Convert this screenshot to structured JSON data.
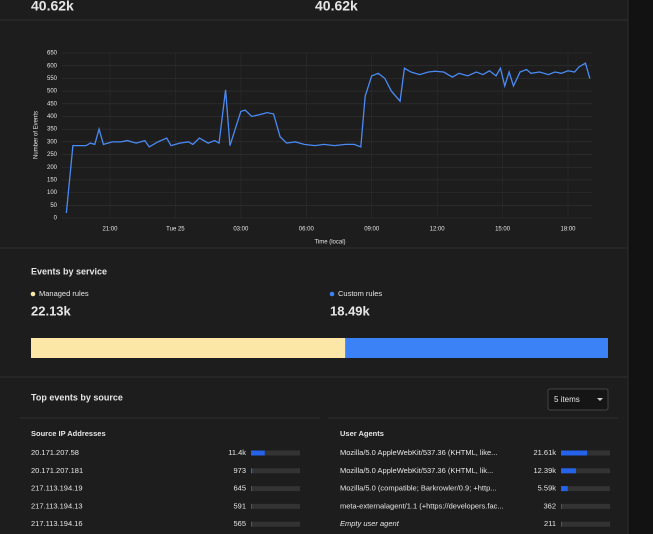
{
  "stats": [
    {
      "value": 40620,
      "label": "40.62k"
    },
    {
      "value": 40620,
      "label": "40.62k"
    }
  ],
  "chart_data": {
    "type": "line",
    "xlabel": "Time (local)",
    "ylabel": "Number of Events",
    "x": [
      19.0,
      19.3,
      19.9,
      20.1,
      20.3,
      20.5,
      20.7,
      21.1,
      21.5,
      21.8,
      22.2,
      22.6,
      22.8,
      23.2,
      23.6,
      23.8,
      24.2,
      24.6,
      24.8,
      25.1,
      25.5,
      25.8,
      26.0,
      26.3,
      26.5,
      27.0,
      27.2,
      27.5,
      28.0,
      28.2,
      28.5,
      28.8,
      29.1,
      29.5,
      29.9,
      30.4,
      30.8,
      31.3,
      31.8,
      32.2,
      32.5,
      32.7,
      33.0,
      33.3,
      33.6,
      33.9,
      34.3,
      34.5,
      34.8,
      35.2,
      35.6,
      35.9,
      36.3,
      36.7,
      37.0,
      37.4,
      37.8,
      38.1,
      38.4,
      38.7,
      38.9,
      39.1,
      39.3,
      39.5,
      39.8,
      40.1,
      40.3,
      40.7,
      41.1,
      41.4,
      41.7,
      42.0,
      42.3,
      42.5,
      42.8,
      43.0
    ],
    "series": [
      {
        "name": "Events",
        "color": "#4a8af4",
        "values": [
          20,
          285,
          285,
          295,
          290,
          350,
          290,
          300,
          300,
          305,
          295,
          305,
          280,
          300,
          315,
          285,
          295,
          300,
          290,
          315,
          295,
          305,
          295,
          505,
          285,
          420,
          425,
          400,
          410,
          415,
          410,
          320,
          295,
          300,
          290,
          285,
          290,
          285,
          290,
          290,
          280,
          480,
          560,
          570,
          550,
          500,
          460,
          590,
          575,
          565,
          575,
          578,
          575,
          555,
          570,
          560,
          575,
          565,
          580,
          560,
          590,
          520,
          575,
          520,
          575,
          585,
          570,
          575,
          565,
          575,
          570,
          580,
          575,
          595,
          610,
          550
        ]
      }
    ],
    "xlim": [
      18.8,
      43.1
    ],
    "xticks": [
      {
        "value": 21,
        "label": "21:00"
      },
      {
        "value": 24,
        "label": "Tue 25"
      },
      {
        "value": 27,
        "label": "03:00"
      },
      {
        "value": 30,
        "label": "06:00"
      },
      {
        "value": 33,
        "label": "09:00"
      },
      {
        "value": 36,
        "label": "12:00"
      },
      {
        "value": 39,
        "label": "15:00"
      },
      {
        "value": 42,
        "label": "18:00"
      }
    ],
    "ylim": [
      0,
      650
    ],
    "yticks": [
      0,
      50,
      100,
      150,
      200,
      250,
      300,
      350,
      400,
      450,
      500,
      550,
      600,
      650
    ],
    "grid": true
  },
  "service": {
    "title": "Events by service",
    "items": [
      {
        "name": "Managed rules",
        "color": "#fde7a6",
        "value": 22130,
        "label": "22.13k"
      },
      {
        "name": "Custom rules",
        "color": "#3b82f6",
        "value": 18490,
        "label": "18.49k"
      }
    ]
  },
  "sources": {
    "title": "Top events by source",
    "dropdown": "5 items",
    "tables": [
      {
        "heading": "Source IP Addresses",
        "rows": [
          {
            "name": "20.171.207.58",
            "value": 11400,
            "value_label": "11.4k"
          },
          {
            "name": "20.171.207.181",
            "value": 973
          },
          {
            "name": "217.113.194.19",
            "value": 645
          },
          {
            "name": "217.113.194.13",
            "value": 591
          },
          {
            "name": "217.113.194.16",
            "value": 565
          }
        ]
      },
      {
        "heading": "User Agents",
        "rows": [
          {
            "name": "Mozilla/5.0 AppleWebKit/537.36 (KHTML, like...",
            "value": 21610,
            "value_label": "21.61k"
          },
          {
            "name": "Mozilla/5.0 AppleWebKit/537.36 (KHTML, lik...",
            "value": 12390,
            "value_label": "12.39k"
          },
          {
            "name": "Mozilla/5.0 (compatible; Barkrowler/0.9; +http...",
            "value": 5590,
            "value_label": "5.59k"
          },
          {
            "name": "meta-externalagent/1.1 (+https://developers.fac...",
            "value": 362
          },
          {
            "name": "Empty user agent",
            "value": 211
          }
        ]
      }
    ]
  }
}
